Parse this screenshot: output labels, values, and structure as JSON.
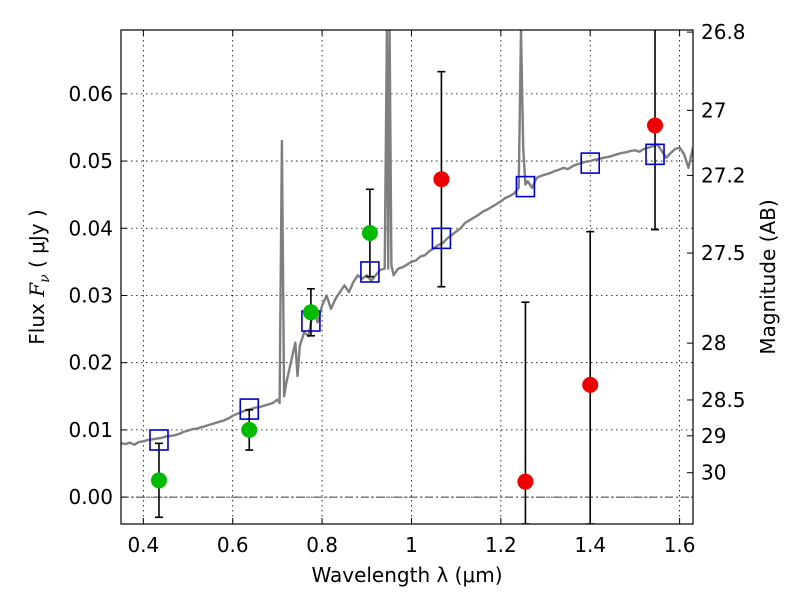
{
  "chart_data": {
    "type": "scatter",
    "xlabel": "Wavelength  λ (μm)",
    "ylabel_text": "Flux  ",
    "ylabel_math": "F",
    "ylabel_sub": "ν",
    "ylabel_unit": "  ( μJy )",
    "y2label": "Magnitude (AB)",
    "xlim": [
      0.35,
      1.63
    ],
    "ylim": [
      -0.004,
      0.0695
    ],
    "grid": true,
    "x_ticks": [
      0.4,
      0.6,
      0.8,
      1.0,
      1.2,
      1.4,
      1.6
    ],
    "x_tick_labels": [
      "0.4",
      "0.6",
      "0.8",
      "1",
      "1.2",
      "1.4",
      "1.6"
    ],
    "y_ticks": [
      0.0,
      0.01,
      0.02,
      0.03,
      0.04,
      0.05,
      0.06
    ],
    "y_tick_labels": [
      "0.00",
      "0.01",
      "0.02",
      "0.03",
      "0.04",
      "0.05",
      "0.06"
    ],
    "mag_ticks": [
      26.8,
      27,
      27.2,
      27.5,
      28,
      28.5,
      29,
      30
    ],
    "mag_tick_labels": [
      "26.8",
      "27",
      "27.2",
      "27.5",
      "28",
      "28.5",
      "29",
      "30"
    ],
    "colors": {
      "detection": "#00bb00",
      "upper_limit": "#ee0000",
      "model": "#0000cc",
      "sed": "#7f7f7f",
      "errorbar": "#000000"
    },
    "series": [
      {
        "kind": "sed",
        "x": [
          0.35,
          0.36,
          0.37,
          0.38,
          0.39,
          0.4,
          0.41,
          0.42,
          0.43,
          0.44,
          0.45,
          0.46,
          0.47,
          0.48,
          0.49,
          0.5,
          0.51,
          0.52,
          0.53,
          0.54,
          0.55,
          0.56,
          0.57,
          0.58,
          0.59,
          0.6,
          0.61,
          0.62,
          0.63,
          0.64,
          0.65,
          0.66,
          0.67,
          0.68,
          0.69,
          0.7,
          0.705,
          0.71,
          0.715,
          0.72,
          0.73,
          0.74,
          0.745,
          0.75,
          0.76,
          0.77,
          0.78,
          0.79,
          0.8,
          0.81,
          0.82,
          0.83,
          0.84,
          0.85,
          0.86,
          0.87,
          0.88,
          0.89,
          0.9,
          0.91,
          0.92,
          0.93,
          0.94,
          0.945,
          0.948,
          0.951,
          0.955,
          0.96,
          0.97,
          0.98,
          0.99,
          1.0,
          1.01,
          1.02,
          1.03,
          1.04,
          1.05,
          1.06,
          1.07,
          1.08,
          1.09,
          1.1,
          1.11,
          1.12,
          1.13,
          1.14,
          1.15,
          1.16,
          1.17,
          1.18,
          1.19,
          1.2,
          1.21,
          1.22,
          1.23,
          1.24,
          1.245,
          1.25,
          1.255,
          1.26,
          1.27,
          1.28,
          1.29,
          1.3,
          1.31,
          1.32,
          1.33,
          1.34,
          1.35,
          1.36,
          1.37,
          1.38,
          1.39,
          1.4,
          1.41,
          1.42,
          1.43,
          1.44,
          1.45,
          1.46,
          1.47,
          1.48,
          1.49,
          1.5,
          1.51,
          1.52,
          1.53,
          1.54,
          1.55,
          1.56,
          1.57,
          1.58,
          1.59,
          1.6,
          1.61,
          1.62,
          1.63
        ],
        "y": [
          0.008,
          0.0079,
          0.0081,
          0.0078,
          0.0082,
          0.0083,
          0.0085,
          0.0086,
          0.0087,
          0.0088,
          0.009,
          0.0091,
          0.0092,
          0.0094,
          0.0097,
          0.0099,
          0.0101,
          0.0102,
          0.0104,
          0.0106,
          0.0108,
          0.011,
          0.0112,
          0.0114,
          0.0117,
          0.0121,
          0.0124,
          0.0127,
          0.0129,
          0.0131,
          0.0133,
          0.0134,
          0.0136,
          0.0138,
          0.014,
          0.0145,
          0.014,
          0.053,
          0.015,
          0.017,
          0.02,
          0.023,
          0.018,
          0.0225,
          0.0245,
          0.024,
          0.028,
          0.026,
          0.0285,
          0.03,
          0.028,
          0.0295,
          0.0305,
          0.0315,
          0.0305,
          0.032,
          0.033,
          0.0325,
          0.033,
          0.0322,
          0.033,
          0.0338,
          0.034,
          0.0695,
          0.034,
          0.0695,
          0.0345,
          0.033,
          0.034,
          0.0342,
          0.0346,
          0.035,
          0.0352,
          0.0358,
          0.036,
          0.0366,
          0.037,
          0.0375,
          0.0378,
          0.0385,
          0.039,
          0.0395,
          0.04,
          0.0408,
          0.0412,
          0.0416,
          0.042,
          0.0425,
          0.0428,
          0.0432,
          0.0436,
          0.044,
          0.0445,
          0.0448,
          0.0452,
          0.046,
          0.0695,
          0.052,
          0.0465,
          0.047,
          0.046,
          0.0475,
          0.0478,
          0.048,
          0.0482,
          0.0485,
          0.0487,
          0.049,
          0.0488,
          0.0492,
          0.0495,
          0.0497,
          0.0499,
          0.05,
          0.0502,
          0.0503,
          0.0505,
          0.0506,
          0.0508,
          0.051,
          0.0512,
          0.0513,
          0.0515,
          0.0516,
          0.0514,
          0.0518,
          0.052,
          0.0522,
          0.0525,
          0.0515,
          0.0505,
          0.0512,
          0.0518,
          0.052,
          0.051,
          0.049,
          0.052
        ]
      },
      {
        "kind": "model",
        "x": [
          0.435,
          0.637,
          0.775,
          0.907,
          1.067,
          1.255,
          1.4,
          1.545
        ],
        "y": [
          0.0085,
          0.0131,
          0.0262,
          0.0335,
          0.0385,
          0.0462,
          0.0497,
          0.051
        ]
      },
      {
        "kind": "detection",
        "x": [
          0.435,
          0.637,
          0.775,
          0.907
        ],
        "y": [
          0.0025,
          0.01,
          0.0275,
          0.0393
        ],
        "err_low": [
          0.0055,
          0.003,
          0.0035,
          0.0065
        ],
        "err_high": [
          0.0055,
          0.003,
          0.0035,
          0.0065
        ]
      },
      {
        "kind": "upper_limit",
        "x": [
          1.067,
          1.255,
          1.4,
          1.545
        ],
        "y": [
          0.0473,
          0.0023,
          0.0167,
          0.0553
        ],
        "err_low": [
          0.016,
          0.0063,
          0.0207,
          0.0155
        ],
        "err_high": [
          0.016,
          0.0267,
          0.0228,
          0.0155
        ]
      }
    ]
  }
}
